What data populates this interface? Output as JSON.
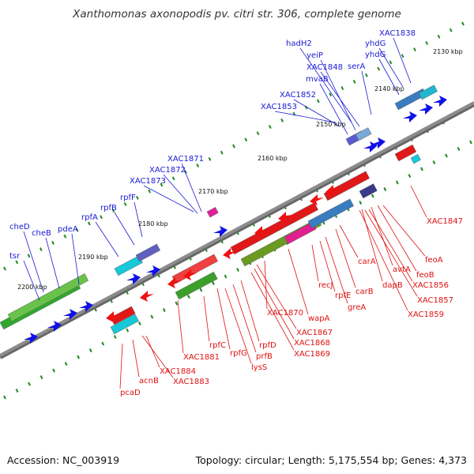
{
  "title": "Xanthomonas axonopodis pv. citri str. 306, complete genome",
  "footer": {
    "accession": "Accession: NC_003919",
    "topology": "Topology: circular; Length: 5,175,554 bp; Genes: 4,373"
  },
  "colors": {
    "forward_label": "#1a1ad6",
    "reverse_label": "#e01010",
    "backbone": "#8c8c8c",
    "tick": "#1e8a1e"
  },
  "kbp_ticks": [
    "2130 kbp",
    "2140 kbp",
    "2150 kbp",
    "2160 kbp",
    "2170 kbp",
    "2180 kbp",
    "2190 kbp",
    "2200 kbp"
  ],
  "forward_genes": [
    "XAC1838",
    "yhdG",
    "yhdG",
    "serA",
    "hadH2",
    "yeiP",
    "XAC1848",
    "mvaB",
    "XAC1852",
    "XAC1853",
    "XAC1871",
    "XAC1872",
    "XAC1873",
    "rpfF",
    "rpfB",
    "rpfA",
    "pdeA",
    "cheB",
    "cheD",
    "tsr"
  ],
  "reverse_genes": [
    "XAC1847",
    "feoA",
    "feoB",
    "avtA",
    "XAC1856",
    "XAC1857",
    "dapB",
    "XAC1859",
    "carA",
    "carB",
    "greA",
    "rpfE",
    "recJ",
    "wapA",
    "XAC1870",
    "XAC1867",
    "XAC1868",
    "XAC1869",
    "rpfD",
    "prfB",
    "lysS",
    "rpfG",
    "rpfC",
    "XAC1881",
    "XAC1884",
    "XAC1883",
    "acnB",
    "pcaD"
  ]
}
